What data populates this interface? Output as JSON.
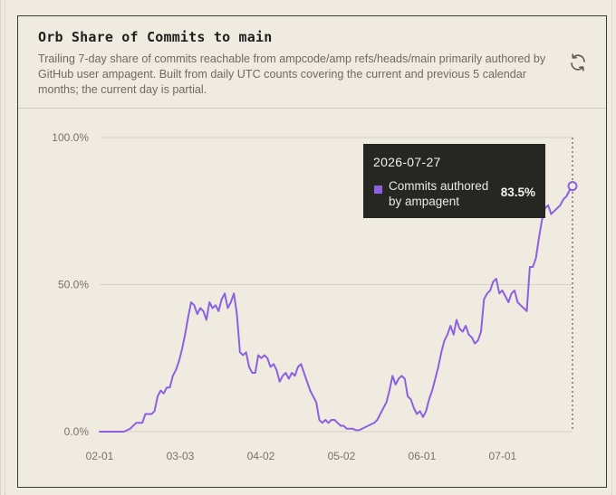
{
  "card": {
    "title": "Orb Share of Commits to main",
    "description": "Trailing 7-day share of commits reachable from ampcode/amp refs/heads/main primarily authored by GitHub user ampagent. Built from daily UTC counts covering the current and previous 5 calendar months; the current day is partial."
  },
  "tooltip": {
    "date": "2026-07-27",
    "series_label": "Commits authored by ampagent",
    "value": "83.5%",
    "swatch_color": "#8b61e0"
  },
  "colors": {
    "line": "#8b61e0",
    "grid": "#d6d1c4",
    "text": "#77736a"
  },
  "chart_data": {
    "type": "line",
    "title": "Orb Share of Commits to main",
    "xlabel": "",
    "ylabel": "",
    "ylim": [
      0,
      100
    ],
    "y_ticks": [
      "0.0%",
      "50.0%",
      "100.0%"
    ],
    "x_ticks": [
      "02-01",
      "03-03",
      "04-02",
      "05-02",
      "06-01",
      "07-01"
    ],
    "x_start": "2026-02-01",
    "x_end": "2026-07-27",
    "grid": true,
    "series": [
      {
        "name": "Commits authored by ampagent",
        "values": [
          0,
          0,
          0,
          0,
          0,
          0,
          0,
          0,
          0,
          0.5,
          1,
          2,
          3,
          3,
          3,
          6,
          6,
          6,
          7,
          12,
          14,
          13,
          15,
          15,
          19,
          21,
          24,
          28,
          33,
          39,
          44,
          43,
          40,
          42,
          41,
          38,
          44,
          42,
          43,
          41,
          45,
          47,
          42,
          44,
          47,
          40,
          27,
          26,
          27,
          22,
          20,
          20,
          26,
          25,
          26,
          25,
          22,
          23,
          21,
          17,
          19,
          20,
          18,
          20,
          19,
          22,
          23,
          20,
          17,
          14,
          12,
          10,
          4,
          3,
          4,
          3,
          4,
          4,
          3,
          2,
          2,
          1,
          1,
          1,
          0.5,
          0.5,
          1,
          1.5,
          2,
          2.5,
          3,
          4,
          6,
          8,
          10,
          14,
          19,
          16,
          18,
          19,
          18,
          12,
          11,
          8,
          6,
          7,
          5,
          7,
          11,
          14,
          18,
          22,
          27,
          31,
          33,
          36,
          33,
          38,
          35,
          34,
          36,
          33,
          32,
          30,
          31,
          34,
          45,
          47,
          48,
          51,
          52,
          47,
          48,
          46,
          44,
          47,
          48,
          44,
          43,
          42,
          41,
          56,
          56,
          59,
          66,
          72,
          76,
          77,
          74,
          75,
          76,
          77,
          79,
          80,
          82,
          83.5
        ]
      }
    ]
  }
}
